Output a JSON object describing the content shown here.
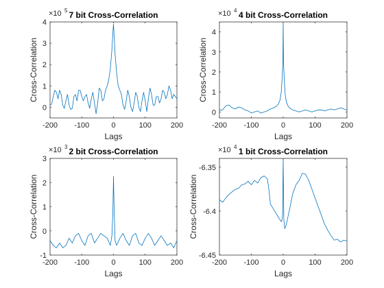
{
  "colors": {
    "line": "#0072BD",
    "axis": "#262626",
    "background": "#ffffff"
  },
  "chart_data": [
    {
      "type": "line",
      "title": "7 bit Cross-Correlation",
      "xlabel": "Lags",
      "ylabel": "Cross-Correlation",
      "exponent_label": "×10",
      "exponent": "5",
      "xlim": [
        -200,
        200
      ],
      "ylim": [
        -0.5,
        4
      ],
      "xticks": [
        -200,
        -100,
        0,
        100,
        200
      ],
      "xtick_labels": [
        "-200",
        "-100",
        "0",
        "100",
        "200"
      ],
      "yticks": [
        0,
        1,
        2,
        3,
        4
      ],
      "ytick_labels": [
        "0",
        "1",
        "2",
        "3",
        "4"
      ],
      "series": [
        {
          "x": [
            -200,
            -195,
            -190,
            -185,
            -180,
            -175,
            -170,
            -165,
            -160,
            -155,
            -150,
            -145,
            -140,
            -135,
            -130,
            -125,
            -120,
            -115,
            -110,
            -105,
            -100,
            -95,
            -90,
            -85,
            -80,
            -75,
            -70,
            -65,
            -60,
            -55,
            -50,
            -45,
            -40,
            -35,
            -30,
            -25,
            -20,
            -15,
            -10,
            -5,
            -2,
            0,
            2,
            5,
            10,
            15,
            20,
            25,
            30,
            35,
            40,
            45,
            50,
            55,
            60,
            65,
            70,
            75,
            80,
            85,
            90,
            95,
            100,
            105,
            110,
            115,
            120,
            125,
            130,
            135,
            140,
            145,
            150,
            155,
            160,
            165,
            170,
            175,
            180,
            185,
            190,
            195,
            200
          ],
          "y": [
            0.1,
            0.15,
            0.5,
            0.8,
            0.7,
            0.4,
            0.8,
            0.6,
            0.1,
            -0.05,
            0.3,
            0.6,
            0.1,
            -0.1,
            -0.05,
            0.5,
            0.6,
            0.3,
            0.8,
            0.8,
            0.5,
            0.3,
            0.5,
            0.6,
            0.2,
            -0.05,
            0.4,
            0.7,
            0.2,
            -0.3,
            0.2,
            0.9,
            0.8,
            0.3,
            0.4,
            0.8,
            1.0,
            1.3,
            1.8,
            2.7,
            3.5,
            3.9,
            3.4,
            2.5,
            1.6,
            1.0,
            0.8,
            0.6,
            0.1,
            -0.1,
            0.3,
            0.8,
            0.5,
            0.0,
            -0.2,
            0.2,
            0.7,
            0.5,
            0.0,
            -0.2,
            0.3,
            0.7,
            0.3,
            -0.2,
            0.4,
            0.9,
            0.6,
            0.1,
            0.1,
            0.5,
            0.5,
            0.2,
            0.4,
            0.8,
            0.7,
            0.4,
            0.6,
            1.0,
            0.8,
            0.4,
            0.6,
            0.5,
            0.4
          ]
        }
      ]
    },
    {
      "type": "line",
      "title": "4 bit Cross-Correlation",
      "xlabel": "Lags",
      "ylabel": "Cross-Correlation",
      "exponent_label": "×10",
      "exponent": "4",
      "xlim": [
        -200,
        200
      ],
      "ylim": [
        -0.3,
        4.5
      ],
      "xticks": [
        -200,
        -100,
        0,
        100,
        200
      ],
      "xtick_labels": [
        "-200",
        "-100",
        "0",
        "100",
        "200"
      ],
      "yticks": [
        0,
        1,
        2,
        3,
        4
      ],
      "ytick_labels": [
        "0",
        "1",
        "2",
        "3",
        "4"
      ],
      "series": [
        {
          "x": [
            -200,
            -190,
            -180,
            -170,
            -160,
            -150,
            -140,
            -130,
            -120,
            -110,
            -100,
            -90,
            -80,
            -70,
            -60,
            -50,
            -40,
            -30,
            -20,
            -15,
            -10,
            -6,
            -3,
            -1,
            0,
            1,
            3,
            6,
            10,
            15,
            20,
            30,
            40,
            50,
            60,
            70,
            80,
            90,
            100,
            110,
            120,
            130,
            140,
            150,
            160,
            170,
            180,
            190,
            200
          ],
          "y": [
            0.1,
            0.1,
            0.3,
            0.35,
            0.2,
            0.15,
            0.25,
            0.2,
            0.1,
            0.05,
            -0.05,
            0.0,
            0.05,
            -0.05,
            0.0,
            0.05,
            0.15,
            0.2,
            0.3,
            0.4,
            0.6,
            1.0,
            1.8,
            2.5,
            4.5,
            2.5,
            1.7,
            0.9,
            0.5,
            0.3,
            0.2,
            0.1,
            0.05,
            0.0,
            0.05,
            0.1,
            0.05,
            0.0,
            0.05,
            0.1,
            0.1,
            0.05,
            0.1,
            0.15,
            0.1,
            0.15,
            0.2,
            0.15,
            0.1
          ]
        }
      ]
    },
    {
      "type": "line",
      "title": "2 bit Cross-Correlation",
      "xlabel": "Lags",
      "ylabel": "Cross-Correlation",
      "exponent_label": "×10",
      "exponent": "3",
      "xlim": [
        -200,
        200
      ],
      "ylim": [
        -1,
        3
      ],
      "xticks": [
        -200,
        -100,
        0,
        100,
        200
      ],
      "xtick_labels": [
        "-200",
        "-100",
        "0",
        "100",
        "200"
      ],
      "yticks": [
        -1,
        0,
        1,
        2,
        3
      ],
      "ytick_labels": [
        "-1",
        "0",
        "1",
        "2",
        "3"
      ],
      "series": [
        {
          "x": [
            -200,
            -190,
            -180,
            -170,
            -160,
            -150,
            -140,
            -130,
            -120,
            -110,
            -100,
            -90,
            -80,
            -70,
            -60,
            -50,
            -40,
            -30,
            -20,
            -10,
            -5,
            -2,
            0,
            2,
            5,
            10,
            20,
            30,
            40,
            50,
            60,
            70,
            80,
            90,
            100,
            110,
            120,
            130,
            140,
            150,
            160,
            170,
            180,
            190,
            200
          ],
          "y": [
            -0.4,
            -0.6,
            -0.7,
            -0.5,
            -0.7,
            -0.6,
            -0.3,
            -0.5,
            -0.2,
            -0.1,
            -0.4,
            -0.6,
            -0.2,
            -0.1,
            -0.5,
            -0.3,
            -0.1,
            -0.2,
            -0.3,
            -0.6,
            -0.2,
            0.8,
            2.25,
            0.9,
            -0.4,
            -0.6,
            -0.3,
            -0.1,
            -0.4,
            -0.6,
            -0.2,
            -0.1,
            -0.5,
            -0.6,
            -0.3,
            -0.1,
            -0.3,
            -0.6,
            -0.4,
            -0.2,
            -0.4,
            -0.6,
            -0.5,
            -0.7,
            -0.4
          ]
        }
      ]
    },
    {
      "type": "line",
      "title": "1 bit Cross-Correlation",
      "xlabel": "Lags",
      "ylabel": "Cross-Correlation",
      "exponent_label": "×10",
      "exponent": "4",
      "xlim": [
        -200,
        200
      ],
      "ylim": [
        -6.45,
        -6.34
      ],
      "xticks": [
        -200,
        -100,
        0,
        100,
        200
      ],
      "xtick_labels": [
        "-200",
        "-100",
        "0",
        "100",
        "200"
      ],
      "yticks": [
        -6.45,
        -6.4,
        -6.35
      ],
      "ytick_labels": [
        "-6.45",
        "-6.4",
        "-6.35"
      ],
      "series": [
        {
          "x": [
            -200,
            -190,
            -180,
            -170,
            -160,
            -150,
            -140,
            -130,
            -120,
            -110,
            -100,
            -90,
            -80,
            -70,
            -60,
            -50,
            -45,
            -40,
            -30,
            -20,
            -10,
            -5,
            -2,
            0,
            2,
            5,
            10,
            20,
            30,
            40,
            50,
            60,
            70,
            80,
            90,
            100,
            110,
            120,
            130,
            140,
            150,
            160,
            170,
            180,
            190,
            200
          ],
          "y": [
            -6.387,
            -6.39,
            -6.385,
            -6.381,
            -6.378,
            -6.375,
            -6.374,
            -6.37,
            -6.369,
            -6.366,
            -6.37,
            -6.365,
            -6.368,
            -6.362,
            -6.36,
            -6.363,
            -6.375,
            -6.392,
            -6.398,
            -6.404,
            -6.41,
            -6.412,
            -6.405,
            -6.34,
            -6.41,
            -6.42,
            -6.415,
            -6.398,
            -6.38,
            -6.37,
            -6.365,
            -6.357,
            -6.358,
            -6.365,
            -6.375,
            -6.385,
            -6.395,
            -6.405,
            -6.415,
            -6.422,
            -6.428,
            -6.433,
            -6.432,
            -6.435,
            -6.433,
            -6.434
          ]
        }
      ]
    }
  ]
}
